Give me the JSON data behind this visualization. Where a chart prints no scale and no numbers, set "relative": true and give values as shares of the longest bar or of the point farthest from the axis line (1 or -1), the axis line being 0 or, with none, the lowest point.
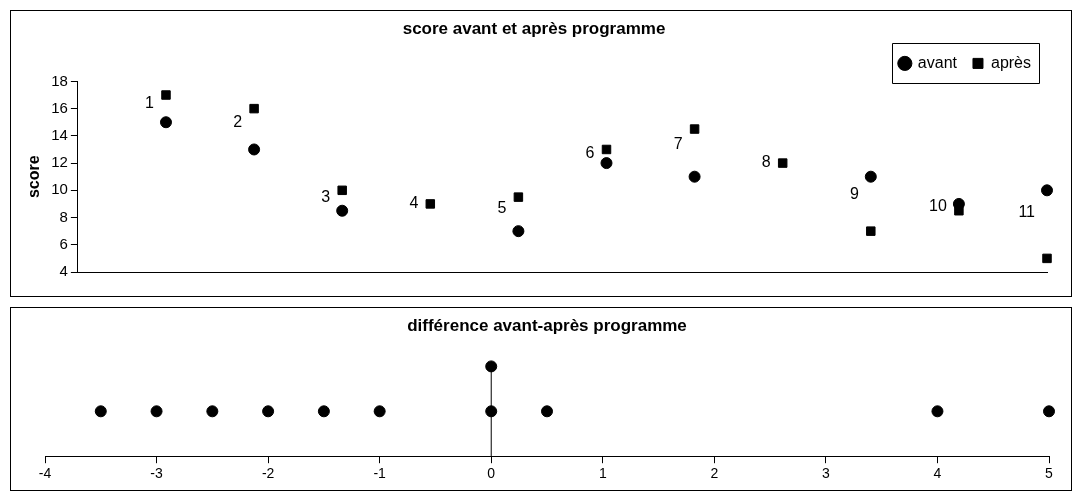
{
  "chart_data": [
    {
      "type": "scatter",
      "title": "score avant et après programme",
      "ylabel": "score",
      "categories": [
        "1",
        "2",
        "3",
        "4",
        "5",
        "6",
        "7",
        "8",
        "9",
        "10",
        "11"
      ],
      "series": [
        {
          "name": "avant",
          "color": "#000000",
          "marker": "circle",
          "values": [
            15,
            13,
            8.5,
            null,
            7,
            12,
            11,
            null,
            11,
            9,
            10
          ]
        },
        {
          "name": "après",
          "color": "#000000",
          "marker": "square",
          "values": [
            17,
            16,
            10,
            9,
            9.5,
            13,
            14.5,
            12,
            7,
            8.5,
            5
          ]
        }
      ],
      "ylim": [
        4,
        18
      ],
      "yticks": [
        4,
        6,
        8,
        10,
        12,
        14,
        16,
        18
      ],
      "tick_labels": "y",
      "legend": "top right",
      "grid": false
    },
    {
      "type": "scatter",
      "title": "différence avant-après programme",
      "x": [
        -3.5,
        -3,
        -2.5,
        -2,
        -1.5,
        -1,
        0,
        0,
        0.5,
        4,
        5
      ],
      "values": [
        0.5,
        0.5,
        0.5,
        0.5,
        0.5,
        0.5,
        0.5,
        1,
        0.5,
        0.5,
        0.5
      ],
      "color": "#000000",
      "marker": "circle",
      "relative": true,
      "xlim": [
        -4,
        5
      ],
      "xticks": [
        -4,
        -3,
        -2,
        -1,
        0,
        1,
        2,
        3,
        4,
        5
      ],
      "tick_labels": "x",
      "ref_lines": [
        {
          "axis": "x",
          "value": 0
        }
      ],
      "grid": false
    }
  ]
}
